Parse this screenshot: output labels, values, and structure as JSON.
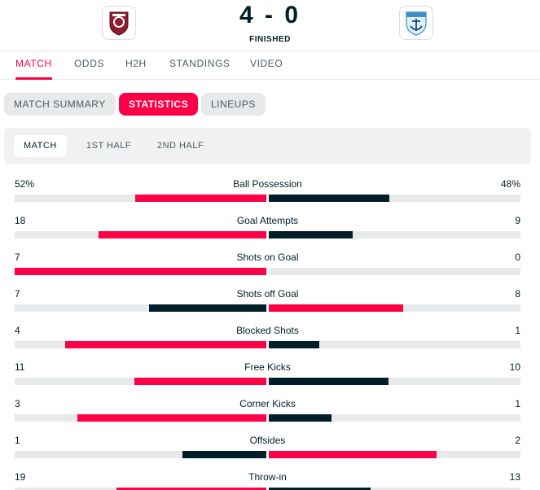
{
  "match": {
    "score": "4 - 0",
    "status": "FINISHED",
    "home_logo_icon": "cfr-cluj-crest-icon",
    "away_logo_icon": "anchor-crest-icon"
  },
  "tabs": [
    {
      "label": "MATCH",
      "active": true
    },
    {
      "label": "ODDS",
      "active": false
    },
    {
      "label": "H2H",
      "active": false
    },
    {
      "label": "STANDINGS",
      "active": false
    },
    {
      "label": "VIDEO",
      "active": false
    }
  ],
  "pills": [
    {
      "label": "MATCH SUMMARY",
      "active": false
    },
    {
      "label": "STATISTICS",
      "active": true
    },
    {
      "label": "LINEUPS",
      "active": false
    }
  ],
  "periods": [
    {
      "label": "MATCH",
      "active": true
    },
    {
      "label": "1ST HALF",
      "active": false
    },
    {
      "label": "2ND HALF",
      "active": false
    }
  ],
  "colors": {
    "accent": "#ff0046",
    "dark": "#001e28",
    "track": "#e8e9eb"
  },
  "stats": [
    {
      "label": "Ball Possession",
      "home": "52%",
      "away": "48%",
      "home_share": 0.52,
      "away_share": 0.48
    },
    {
      "label": "Goal Attempts",
      "home": "18",
      "away": "9",
      "home_share": 0.667,
      "away_share": 0.333
    },
    {
      "label": "Shots on Goal",
      "home": "7",
      "away": "0",
      "home_share": 1.0,
      "away_share": 0.0
    },
    {
      "label": "Shots off Goal",
      "home": "7",
      "away": "8",
      "home_share": 0.467,
      "away_share": 0.533
    },
    {
      "label": "Blocked Shots",
      "home": "4",
      "away": "1",
      "home_share": 0.8,
      "away_share": 0.2
    },
    {
      "label": "Free Kicks",
      "home": "11",
      "away": "10",
      "home_share": 0.524,
      "away_share": 0.476
    },
    {
      "label": "Corner Kicks",
      "home": "3",
      "away": "1",
      "home_share": 0.75,
      "away_share": 0.25
    },
    {
      "label": "Offsides",
      "home": "1",
      "away": "2",
      "home_share": 0.333,
      "away_share": 0.667
    },
    {
      "label": "Throw-in",
      "home": "19",
      "away": "13",
      "home_share": 0.594,
      "away_share": 0.406
    }
  ]
}
